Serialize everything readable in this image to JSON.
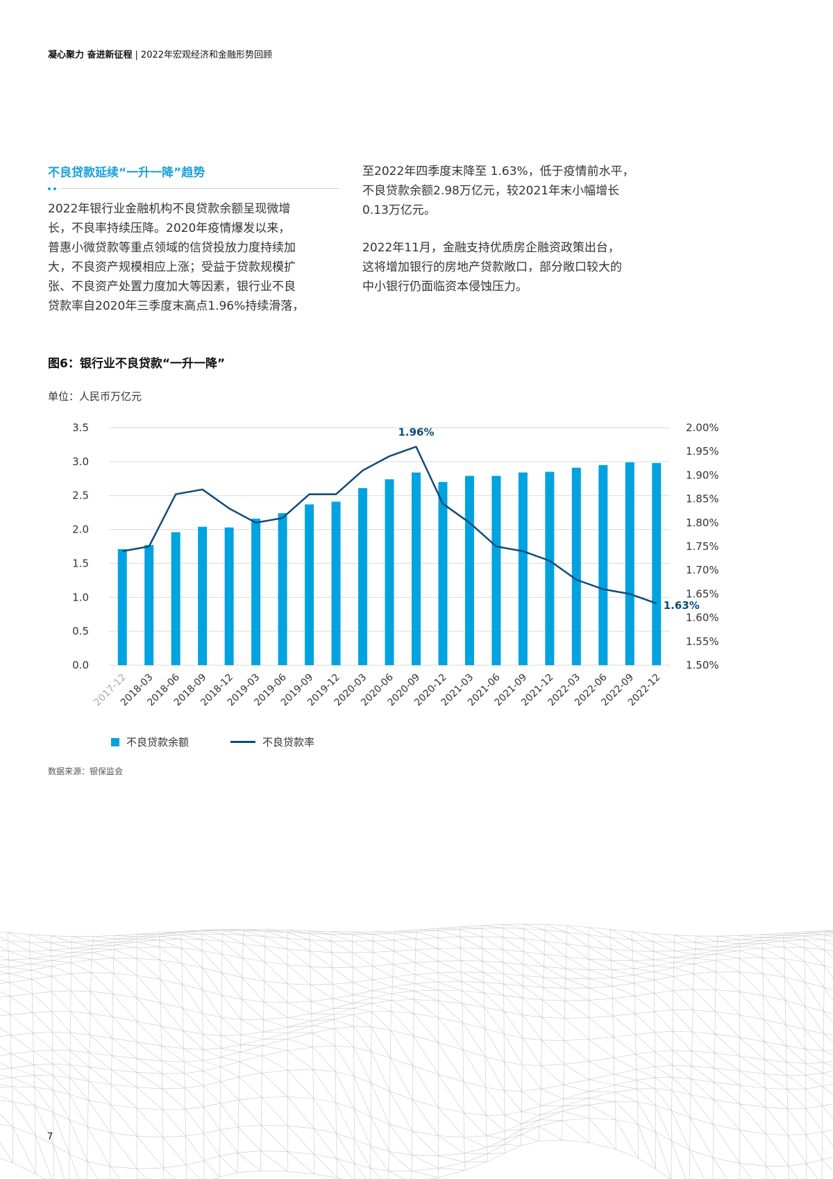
{
  "header": {
    "left": "凝心聚力 奋进新征程",
    "separator": "|",
    "right": "2022年宏观经济和金融形势回顾"
  },
  "section": {
    "title": "不良贷款延续“一升一降”趋势"
  },
  "left_column": {
    "lines": [
      "2022年银行业金融机构不良贷款余额呈现微增",
      "长，不良率持续压降。2020年疫情爆发以来，",
      "普惠小微贷款等重点领域的信贷投放力度持续加",
      "大，不良资产规模相应上涨；受益于贷款规模扩",
      "张、不良资产处置力度加大等因素，银行业不良",
      "贷款率自2020年三季度末高点1.96%持续滑落，"
    ]
  },
  "right_column": {
    "para1_lines": [
      "至2022年四季度末降至 1.63%，低于疫情前水平，",
      "不良贷款余额2.98万亿元，较2021年末小幅增长",
      "0.13万亿元。"
    ],
    "para2_lines": [
      "2022年11月，金融支持优质房企融资政策出台，",
      "这将增加银行的房地产贷款敞口，部分敞口较大的",
      "中小银行仍面临资本侵蚀压力。"
    ]
  },
  "figure": {
    "title": "图6：银行业不良贷款“一升一降”",
    "unit": "单位：人民币万亿元"
  },
  "chart_data": {
    "type": "bar",
    "categories": [
      "2017-12",
      "2018-03",
      "2018-06",
      "2018-09",
      "2018-12",
      "2019-03",
      "2019-06",
      "2019-09",
      "2019-12",
      "2020-03",
      "2020-06",
      "2020-09",
      "2020-12",
      "2021-03",
      "2021-06",
      "2021-09",
      "2021-12",
      "2022-03",
      "2022-06",
      "2022-09",
      "2022-12"
    ],
    "series": [
      {
        "name": "不良贷款余额",
        "type": "bar",
        "axis": "left",
        "color": "#00a3e0",
        "values": [
          1.71,
          1.77,
          1.96,
          2.04,
          2.03,
          2.16,
          2.24,
          2.37,
          2.41,
          2.61,
          2.74,
          2.84,
          2.7,
          2.79,
          2.79,
          2.84,
          2.85,
          2.91,
          2.95,
          2.99,
          2.98
        ]
      },
      {
        "name": "不良贷款率",
        "type": "line",
        "axis": "right",
        "color": "#0d4b7a",
        "values": [
          1.74,
          1.75,
          1.86,
          1.87,
          1.83,
          1.8,
          1.81,
          1.86,
          1.86,
          1.91,
          1.94,
          1.96,
          1.84,
          1.8,
          1.75,
          1.74,
          1.72,
          1.68,
          1.66,
          1.65,
          1.63
        ]
      }
    ],
    "y_left": {
      "min": 0,
      "max": 3.5,
      "ticks": [
        "0.0",
        "0.5",
        "1.0",
        "1.5",
        "2.0",
        "2.5",
        "3.0",
        "3.5"
      ]
    },
    "y_right": {
      "min": 1.5,
      "max": 2.0,
      "ticks": [
        "1.50%",
        "1.55%",
        "1.60%",
        "1.65%",
        "1.70%",
        "1.75%",
        "1.80%",
        "1.85%",
        "1.90%",
        "1.95%",
        "2.00%"
      ]
    },
    "annotations": [
      {
        "index": 11,
        "text": "1.96%"
      },
      {
        "index": 20,
        "text": "1.63%"
      }
    ],
    "grid": true,
    "legend_position": "bottom-left"
  },
  "legend": {
    "bar_label": "不良贷款余额",
    "line_label": "不良贷款率"
  },
  "source": "数据来源：银保监会",
  "page_number": "7"
}
